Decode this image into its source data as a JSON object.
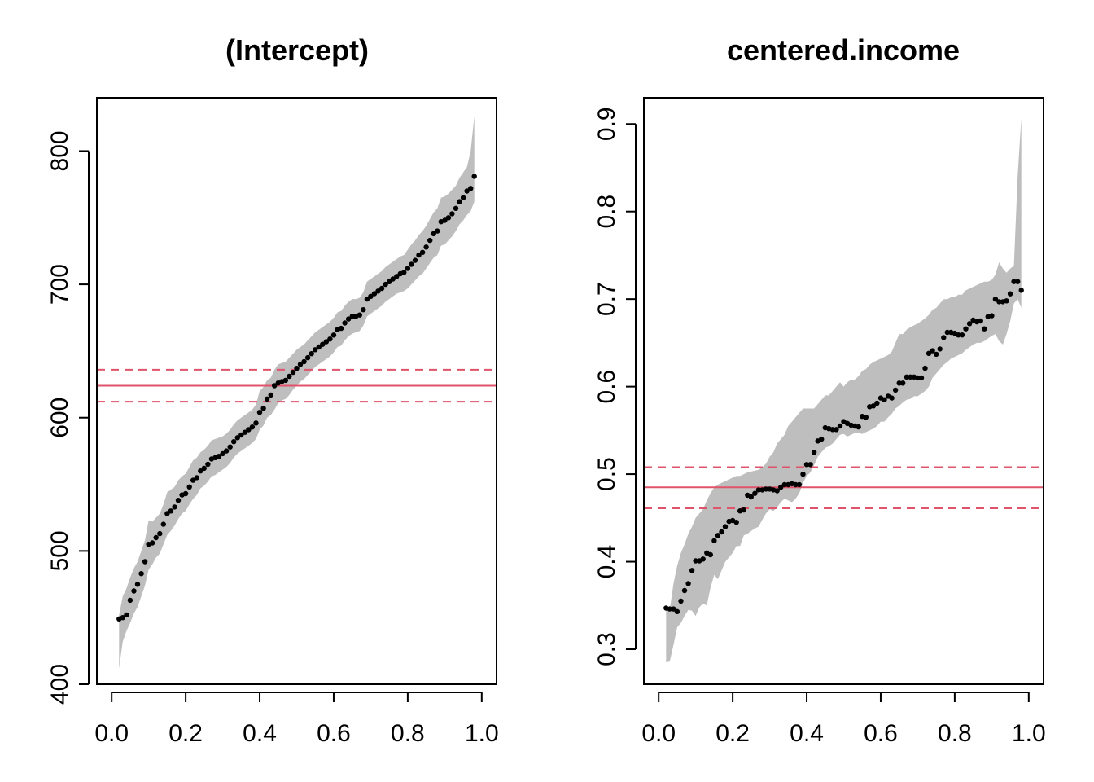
{
  "chart_data": [
    {
      "type": "scatter",
      "title": "(Intercept)",
      "xlabel": "",
      "ylabel": "",
      "xlim": [
        0.0,
        1.0
      ],
      "ylim": [
        400,
        840
      ],
      "x_ticks": [
        "0.0",
        "0.2",
        "0.4",
        "0.6",
        "0.8",
        "1.0"
      ],
      "y_ticks": [
        "400",
        "500",
        "600",
        "700",
        "800"
      ],
      "grid": false,
      "colors": {
        "points": "#000000",
        "band": "#bebebe",
        "reference": "#df536b"
      },
      "reference_lines": {
        "estimate": 624,
        "lower": 612,
        "upper": 636
      },
      "x": [
        0.02,
        0.03,
        0.04,
        0.05,
        0.06,
        0.07,
        0.08,
        0.09,
        0.1,
        0.11,
        0.12,
        0.13,
        0.14,
        0.15,
        0.16,
        0.17,
        0.18,
        0.19,
        0.2,
        0.21,
        0.22,
        0.23,
        0.24,
        0.25,
        0.26,
        0.27,
        0.28,
        0.29,
        0.3,
        0.31,
        0.32,
        0.33,
        0.34,
        0.35,
        0.36,
        0.37,
        0.38,
        0.39,
        0.4,
        0.41,
        0.42,
        0.43,
        0.44,
        0.45,
        0.46,
        0.47,
        0.48,
        0.49,
        0.5,
        0.51,
        0.52,
        0.53,
        0.54,
        0.55,
        0.56,
        0.57,
        0.58,
        0.59,
        0.6,
        0.61,
        0.62,
        0.63,
        0.64,
        0.65,
        0.66,
        0.67,
        0.68,
        0.69,
        0.7,
        0.71,
        0.72,
        0.73,
        0.74,
        0.75,
        0.76,
        0.77,
        0.78,
        0.79,
        0.8,
        0.81,
        0.82,
        0.83,
        0.84,
        0.85,
        0.86,
        0.87,
        0.88,
        0.89,
        0.9,
        0.91,
        0.92,
        0.93,
        0.94,
        0.95,
        0.96,
        0.97,
        0.98
      ],
      "y": [
        449,
        450,
        452,
        463,
        470,
        475,
        483,
        492,
        505,
        506,
        510,
        513,
        520,
        528,
        530,
        533,
        538,
        542,
        543,
        548,
        553,
        555,
        560,
        562,
        565,
        569,
        570,
        571,
        573,
        575,
        578,
        582,
        585,
        587,
        589,
        591,
        593,
        596,
        604,
        607,
        614,
        617,
        624,
        626,
        627,
        628,
        631,
        634,
        637,
        640,
        642,
        645,
        648,
        651,
        653,
        655,
        657,
        659,
        662,
        666,
        667,
        671,
        674,
        676,
        676,
        677,
        681,
        689,
        691,
        693,
        695,
        697,
        700,
        702,
        704,
        706,
        708,
        709,
        712,
        715,
        718,
        722,
        724,
        728,
        733,
        738,
        740,
        747,
        748,
        750,
        753,
        757,
        762,
        765,
        770,
        772,
        781
      ],
      "lower": [
        412,
        432,
        440,
        446,
        453,
        458,
        466,
        474,
        486,
        490,
        495,
        498,
        505,
        512,
        515,
        519,
        524,
        528,
        530,
        535,
        539,
        542,
        547,
        549,
        552,
        556,
        557,
        559,
        561,
        563,
        566,
        570,
        573,
        575,
        577,
        579,
        581,
        584,
        591,
        594,
        600,
        602,
        606,
        611,
        613,
        614,
        617,
        621,
        624,
        627,
        629,
        632,
        635,
        638,
        640,
        642,
        644,
        646,
        649,
        653,
        654,
        658,
        661,
        663,
        664,
        665,
        669,
        676,
        678,
        680,
        682,
        684,
        687,
        689,
        691,
        693,
        694,
        695,
        697,
        700,
        703,
        706,
        708,
        712,
        716,
        720,
        722,
        729,
        730,
        733,
        736,
        740,
        745,
        748,
        752,
        755,
        762
      ],
      "upper": [
        452,
        466,
        472,
        480,
        487,
        492,
        500,
        508,
        523,
        522,
        525,
        528,
        535,
        544,
        546,
        548,
        553,
        556,
        558,
        563,
        568,
        570,
        574,
        576,
        579,
        583,
        584,
        585,
        586,
        588,
        591,
        595,
        598,
        600,
        602,
        604,
        606,
        610,
        620,
        623,
        628,
        630,
        636,
        640,
        641,
        642,
        645,
        648,
        651,
        653,
        655,
        658,
        661,
        664,
        666,
        668,
        670,
        672,
        675,
        679,
        680,
        684,
        687,
        689,
        689,
        690,
        694,
        702,
        704,
        706,
        708,
        710,
        713,
        715,
        717,
        719,
        721,
        722,
        726,
        730,
        733,
        737,
        740,
        744,
        749,
        754,
        757,
        765,
        766,
        768,
        771,
        774,
        780,
        784,
        788,
        800,
        826
      ]
    },
    {
      "type": "scatter",
      "title": "centered.income",
      "xlabel": "",
      "ylabel": "",
      "xlim": [
        0.0,
        1.0
      ],
      "ylim": [
        0.26,
        0.93
      ],
      "x_ticks": [
        "0.0",
        "0.2",
        "0.4",
        "0.6",
        "0.8",
        "1.0"
      ],
      "y_ticks": [
        "0.3",
        "0.4",
        "0.5",
        "0.6",
        "0.7",
        "0.8",
        "0.9"
      ],
      "grid": false,
      "colors": {
        "points": "#000000",
        "band": "#bebebe",
        "reference": "#df536b"
      },
      "reference_lines": {
        "estimate": 0.485,
        "lower": 0.461,
        "upper": 0.508
      },
      "x": [
        0.02,
        0.03,
        0.04,
        0.05,
        0.06,
        0.07,
        0.08,
        0.09,
        0.1,
        0.11,
        0.12,
        0.13,
        0.14,
        0.15,
        0.16,
        0.17,
        0.18,
        0.19,
        0.2,
        0.21,
        0.22,
        0.23,
        0.24,
        0.25,
        0.26,
        0.27,
        0.28,
        0.29,
        0.3,
        0.31,
        0.32,
        0.33,
        0.34,
        0.35,
        0.36,
        0.37,
        0.38,
        0.39,
        0.4,
        0.41,
        0.42,
        0.43,
        0.44,
        0.45,
        0.46,
        0.47,
        0.48,
        0.49,
        0.5,
        0.51,
        0.52,
        0.53,
        0.54,
        0.55,
        0.56,
        0.57,
        0.58,
        0.59,
        0.6,
        0.61,
        0.62,
        0.63,
        0.64,
        0.65,
        0.66,
        0.67,
        0.68,
        0.69,
        0.7,
        0.71,
        0.72,
        0.73,
        0.74,
        0.75,
        0.76,
        0.77,
        0.78,
        0.79,
        0.8,
        0.81,
        0.82,
        0.83,
        0.84,
        0.85,
        0.86,
        0.87,
        0.88,
        0.89,
        0.9,
        0.91,
        0.92,
        0.93,
        0.94,
        0.95,
        0.96,
        0.97,
        0.98
      ],
      "y": [
        0.347,
        0.346,
        0.346,
        0.343,
        0.355,
        0.367,
        0.375,
        0.39,
        0.401,
        0.401,
        0.403,
        0.41,
        0.408,
        0.424,
        0.43,
        0.434,
        0.44,
        0.446,
        0.447,
        0.445,
        0.458,
        0.459,
        0.476,
        0.474,
        0.478,
        0.482,
        0.482,
        0.483,
        0.483,
        0.482,
        0.481,
        0.485,
        0.488,
        0.488,
        0.489,
        0.488,
        0.488,
        0.5,
        0.511,
        0.511,
        0.525,
        0.538,
        0.54,
        0.553,
        0.552,
        0.551,
        0.551,
        0.555,
        0.56,
        0.558,
        0.556,
        0.555,
        0.554,
        0.566,
        0.565,
        0.577,
        0.578,
        0.581,
        0.587,
        0.585,
        0.589,
        0.587,
        0.596,
        0.604,
        0.604,
        0.611,
        0.611,
        0.611,
        0.61,
        0.61,
        0.621,
        0.638,
        0.641,
        0.637,
        0.643,
        0.656,
        0.662,
        0.662,
        0.661,
        0.659,
        0.659,
        0.666,
        0.672,
        0.676,
        0.674,
        0.675,
        0.666,
        0.68,
        0.681,
        0.7,
        0.697,
        0.697,
        0.698,
        0.706,
        0.72,
        0.72,
        0.71
      ],
      "lower": [
        0.285,
        0.286,
        0.305,
        0.325,
        0.33,
        0.338,
        0.345,
        0.344,
        0.338,
        0.348,
        0.352,
        0.35,
        0.37,
        0.385,
        0.38,
        0.39,
        0.4,
        0.405,
        0.41,
        0.418,
        0.418,
        0.43,
        0.432,
        0.435,
        0.438,
        0.44,
        0.448,
        0.455,
        0.46,
        0.458,
        0.462,
        0.468,
        0.472,
        0.47,
        0.468,
        0.472,
        0.478,
        0.49,
        0.498,
        0.502,
        0.51,
        0.52,
        0.525,
        0.53,
        0.532,
        0.535,
        0.54,
        0.545,
        0.546,
        0.543,
        0.545,
        0.547,
        0.547,
        0.546,
        0.548,
        0.55,
        0.552,
        0.555,
        0.56,
        0.56,
        0.565,
        0.569,
        0.575,
        0.578,
        0.582,
        0.585,
        0.586,
        0.589,
        0.589,
        0.592,
        0.595,
        0.6,
        0.61,
        0.615,
        0.62,
        0.625,
        0.628,
        0.632,
        0.634,
        0.636,
        0.638,
        0.642,
        0.645,
        0.648,
        0.65,
        0.65,
        0.652,
        0.655,
        0.658,
        0.66,
        0.652,
        0.648,
        0.66,
        0.675,
        0.695,
        0.7,
        0.69
      ],
      "upper": [
        0.345,
        0.345,
        0.375,
        0.395,
        0.41,
        0.42,
        0.432,
        0.44,
        0.45,
        0.455,
        0.46,
        0.47,
        0.478,
        0.485,
        0.488,
        0.49,
        0.492,
        0.494,
        0.496,
        0.498,
        0.498,
        0.5,
        0.502,
        0.503,
        0.504,
        0.505,
        0.508,
        0.512,
        0.52,
        0.525,
        0.535,
        0.54,
        0.545,
        0.555,
        0.56,
        0.565,
        0.57,
        0.575,
        0.575,
        0.575,
        0.575,
        0.58,
        0.585,
        0.59,
        0.59,
        0.595,
        0.6,
        0.605,
        0.6,
        0.605,
        0.608,
        0.608,
        0.612,
        0.618,
        0.62,
        0.625,
        0.628,
        0.63,
        0.632,
        0.634,
        0.636,
        0.64,
        0.65,
        0.66,
        0.66,
        0.665,
        0.668,
        0.67,
        0.672,
        0.675,
        0.678,
        0.682,
        0.688,
        0.69,
        0.695,
        0.7,
        0.7,
        0.702,
        0.702,
        0.705,
        0.705,
        0.71,
        0.712,
        0.714,
        0.716,
        0.718,
        0.72,
        0.72,
        0.722,
        0.728,
        0.742,
        0.735,
        0.73,
        0.735,
        0.738,
        0.84,
        0.907
      ]
    }
  ]
}
